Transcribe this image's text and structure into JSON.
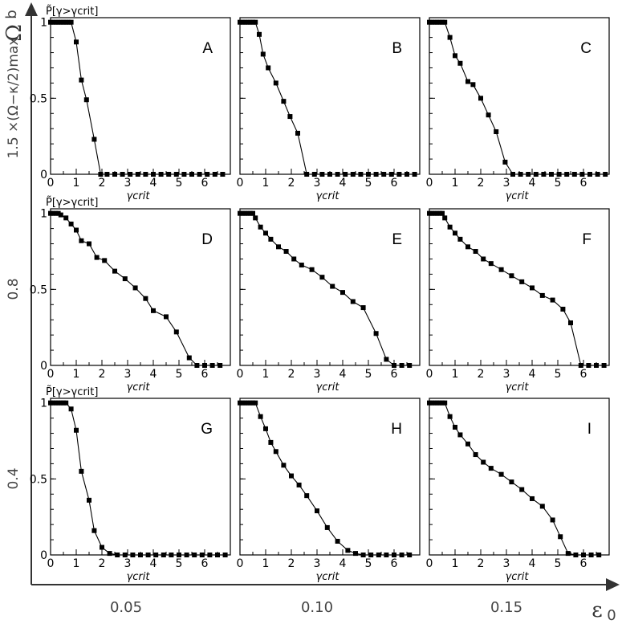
{
  "figure": {
    "y_axis_label": "Ω",
    "y_axis_sub": "b",
    "x_axis_label": "ε",
    "x_axis_sub": "0",
    "column_labels": [
      "0.05",
      "0.10",
      "0.15"
    ],
    "row_labels": [
      "1.5 ×(Ω−κ/2)max",
      "0.8",
      "0.4"
    ],
    "panel_ylabel": "P̃[γ>γcrit]",
    "panel_xlabel": "γcrit",
    "colors": {
      "line": "#000000",
      "axis": "#000000",
      "outer_axis": "#333333"
    }
  },
  "chart_data": [
    {
      "type": "line",
      "panel": "A",
      "row": 0,
      "col": 0,
      "xlabel": "γcrit",
      "ylabel": "P̃[γ>γcrit]",
      "xlim": [
        0,
        7
      ],
      "ylim": [
        0,
        1.03
      ],
      "xticks": [
        0,
        1,
        2,
        3,
        4,
        5,
        6
      ],
      "yticks": [
        0,
        0.5,
        1
      ],
      "x": [
        0.0,
        0.1,
        0.2,
        0.3,
        0.4,
        0.5,
        0.6,
        0.7,
        0.8,
        1.0,
        1.2,
        1.4,
        1.7,
        1.95,
        2.2,
        2.5,
        2.8,
        3.1,
        3.4,
        3.7,
        4.0,
        4.3,
        4.6,
        4.9,
        5.2,
        5.5,
        5.8,
        6.1,
        6.4,
        6.7
      ],
      "y": [
        1,
        1,
        1,
        1,
        1,
        1,
        1,
        1,
        1,
        0.87,
        0.62,
        0.49,
        0.23,
        0,
        0,
        0,
        0,
        0,
        0,
        0,
        0,
        0,
        0,
        0,
        0,
        0,
        0,
        0,
        0,
        0
      ]
    },
    {
      "type": "line",
      "panel": "B",
      "row": 0,
      "col": 1,
      "xlabel": "γcrit",
      "ylabel": "",
      "xlim": [
        0,
        7
      ],
      "ylim": [
        0,
        1.03
      ],
      "xticks": [
        0,
        1,
        2,
        3,
        4,
        5,
        6
      ],
      "yticks": [
        0,
        0.5,
        1
      ],
      "x": [
        0.0,
        0.1,
        0.2,
        0.3,
        0.4,
        0.5,
        0.6,
        0.75,
        0.9,
        1.1,
        1.4,
        1.7,
        1.95,
        2.25,
        2.6,
        2.9,
        3.2,
        3.5,
        3.8,
        4.1,
        4.4,
        4.7,
        5.0,
        5.3,
        5.6,
        5.9,
        6.2,
        6.5,
        6.8
      ],
      "y": [
        1,
        1,
        1,
        1,
        1,
        1,
        1,
        0.92,
        0.79,
        0.7,
        0.6,
        0.48,
        0.38,
        0.27,
        0,
        0,
        0,
        0,
        0,
        0,
        0,
        0,
        0,
        0,
        0,
        0,
        0,
        0,
        0
      ]
    },
    {
      "type": "line",
      "panel": "C",
      "row": 0,
      "col": 2,
      "xlabel": "γcrit",
      "ylabel": "",
      "xlim": [
        0,
        7
      ],
      "ylim": [
        0,
        1.03
      ],
      "xticks": [
        0,
        1,
        2,
        3,
        4,
        5,
        6
      ],
      "yticks": [
        0,
        0.5,
        1
      ],
      "x": [
        0.0,
        0.1,
        0.2,
        0.3,
        0.4,
        0.5,
        0.6,
        0.8,
        1.0,
        1.2,
        1.5,
        1.7,
        2.0,
        2.3,
        2.6,
        2.95,
        3.25,
        3.55,
        3.85,
        4.15,
        4.45,
        4.75,
        5.05,
        5.35,
        5.65,
        5.95,
        6.25,
        6.55,
        6.85
      ],
      "y": [
        1,
        1,
        1,
        1,
        1,
        1,
        1,
        0.9,
        0.78,
        0.73,
        0.61,
        0.59,
        0.5,
        0.39,
        0.28,
        0.08,
        0,
        0,
        0,
        0,
        0,
        0,
        0,
        0,
        0,
        0,
        0,
        0,
        0
      ]
    },
    {
      "type": "line",
      "panel": "D",
      "row": 1,
      "col": 0,
      "xlabel": "γcrit",
      "ylabel": "P̃[γ>γcrit]",
      "xlim": [
        0,
        7
      ],
      "ylim": [
        0,
        1.03
      ],
      "xticks": [
        0,
        1,
        2,
        3,
        4,
        5,
        6
      ],
      "yticks": [
        0,
        0.5,
        1
      ],
      "x": [
        0.0,
        0.1,
        0.2,
        0.3,
        0.4,
        0.6,
        0.8,
        1.0,
        1.2,
        1.5,
        1.8,
        2.1,
        2.5,
        2.9,
        3.3,
        3.7,
        4.0,
        4.5,
        4.9,
        5.4,
        5.7,
        6.0,
        6.3,
        6.6
      ],
      "y": [
        1,
        1,
        1,
        1,
        0.99,
        0.97,
        0.93,
        0.89,
        0.82,
        0.8,
        0.71,
        0.69,
        0.62,
        0.57,
        0.51,
        0.44,
        0.36,
        0.32,
        0.22,
        0.05,
        0,
        0,
        0,
        0
      ]
    },
    {
      "type": "line",
      "panel": "E",
      "row": 1,
      "col": 1,
      "xlabel": "γcrit",
      "ylabel": "",
      "xlim": [
        0,
        7
      ],
      "ylim": [
        0,
        1.03
      ],
      "xticks": [
        0,
        1,
        2,
        3,
        4,
        5,
        6
      ],
      "yticks": [
        0,
        0.5,
        1
      ],
      "x": [
        0.0,
        0.1,
        0.2,
        0.3,
        0.4,
        0.5,
        0.6,
        0.8,
        1.0,
        1.2,
        1.5,
        1.8,
        2.1,
        2.4,
        2.8,
        3.2,
        3.6,
        4.0,
        4.4,
        4.8,
        5.3,
        5.7,
        6.0,
        6.3,
        6.6
      ],
      "y": [
        1,
        1,
        1,
        1,
        1,
        1,
        0.97,
        0.91,
        0.87,
        0.83,
        0.78,
        0.75,
        0.7,
        0.66,
        0.63,
        0.58,
        0.52,
        0.48,
        0.42,
        0.38,
        0.21,
        0.04,
        0,
        0,
        0
      ]
    },
    {
      "type": "line",
      "panel": "F",
      "row": 1,
      "col": 2,
      "xlabel": "γcrit",
      "ylabel": "",
      "xlim": [
        0,
        7
      ],
      "ylim": [
        0,
        1.03
      ],
      "xticks": [
        0,
        1,
        2,
        3,
        4,
        5,
        6
      ],
      "yticks": [
        0,
        0.5,
        1
      ],
      "x": [
        0.0,
        0.1,
        0.2,
        0.3,
        0.4,
        0.5,
        0.6,
        0.8,
        1.0,
        1.2,
        1.5,
        1.8,
        2.1,
        2.4,
        2.8,
        3.2,
        3.6,
        4.0,
        4.4,
        4.8,
        5.2,
        5.5,
        5.9,
        6.2,
        6.5,
        6.8
      ],
      "y": [
        1,
        1,
        1,
        1,
        1,
        1,
        0.97,
        0.91,
        0.87,
        0.83,
        0.78,
        0.75,
        0.7,
        0.67,
        0.63,
        0.59,
        0.55,
        0.51,
        0.46,
        0.43,
        0.37,
        0.28,
        0,
        0,
        0,
        0
      ]
    },
    {
      "type": "line",
      "panel": "G",
      "row": 2,
      "col": 0,
      "xlabel": "γcrit",
      "ylabel": "P̃[γ>γcrit]",
      "xlim": [
        0,
        7
      ],
      "ylim": [
        0,
        1.03
      ],
      "xticks": [
        0,
        1,
        2,
        3,
        4,
        5,
        6
      ],
      "yticks": [
        0,
        0.5,
        1
      ],
      "x": [
        0.0,
        0.1,
        0.2,
        0.3,
        0.4,
        0.5,
        0.6,
        0.8,
        1.0,
        1.2,
        1.5,
        1.7,
        2.0,
        2.3,
        2.6,
        2.9,
        3.2,
        3.5,
        3.8,
        4.1,
        4.4,
        4.7,
        5.0,
        5.3,
        5.6,
        5.9,
        6.2,
        6.5,
        6.8
      ],
      "y": [
        1,
        1,
        1,
        1,
        1,
        1,
        1,
        0.96,
        0.82,
        0.55,
        0.36,
        0.16,
        0.05,
        0.01,
        0,
        0,
        0,
        0,
        0,
        0,
        0,
        0,
        0,
        0,
        0,
        0,
        0,
        0,
        0
      ]
    },
    {
      "type": "line",
      "panel": "H",
      "row": 2,
      "col": 1,
      "xlabel": "γcrit",
      "ylabel": "",
      "xlim": [
        0,
        7
      ],
      "ylim": [
        0,
        1.03
      ],
      "xticks": [
        0,
        1,
        2,
        3,
        4,
        5,
        6
      ],
      "yticks": [
        0,
        0.5,
        1
      ],
      "x": [
        0.0,
        0.1,
        0.2,
        0.3,
        0.4,
        0.5,
        0.6,
        0.8,
        1.0,
        1.2,
        1.4,
        1.7,
        2.0,
        2.3,
        2.6,
        3.0,
        3.4,
        3.8,
        4.2,
        4.5,
        4.8,
        5.1,
        5.4,
        5.7,
        6.0,
        6.3,
        6.6
      ],
      "y": [
        1,
        1,
        1,
        1,
        1,
        1,
        1,
        0.91,
        0.83,
        0.74,
        0.68,
        0.59,
        0.52,
        0.46,
        0.39,
        0.29,
        0.18,
        0.09,
        0.03,
        0.01,
        0,
        0,
        0,
        0,
        0,
        0,
        0
      ]
    },
    {
      "type": "line",
      "panel": "I",
      "row": 2,
      "col": 2,
      "xlabel": "γcrit",
      "ylabel": "",
      "xlim": [
        0,
        7
      ],
      "ylim": [
        0,
        1.03
      ],
      "xticks": [
        0,
        1,
        2,
        3,
        4,
        5,
        6
      ],
      "yticks": [
        0,
        0.5,
        1
      ],
      "x": [
        0.0,
        0.1,
        0.2,
        0.3,
        0.4,
        0.5,
        0.6,
        0.8,
        1.0,
        1.2,
        1.5,
        1.8,
        2.1,
        2.4,
        2.8,
        3.2,
        3.6,
        4.0,
        4.4,
        4.8,
        5.1,
        5.4,
        5.7,
        6.0,
        6.3,
        6.6
      ],
      "y": [
        1,
        1,
        1,
        1,
        1,
        1,
        1,
        0.91,
        0.84,
        0.79,
        0.73,
        0.66,
        0.61,
        0.57,
        0.53,
        0.48,
        0.43,
        0.37,
        0.32,
        0.23,
        0.12,
        0.01,
        0,
        0,
        0,
        0
      ]
    }
  ]
}
